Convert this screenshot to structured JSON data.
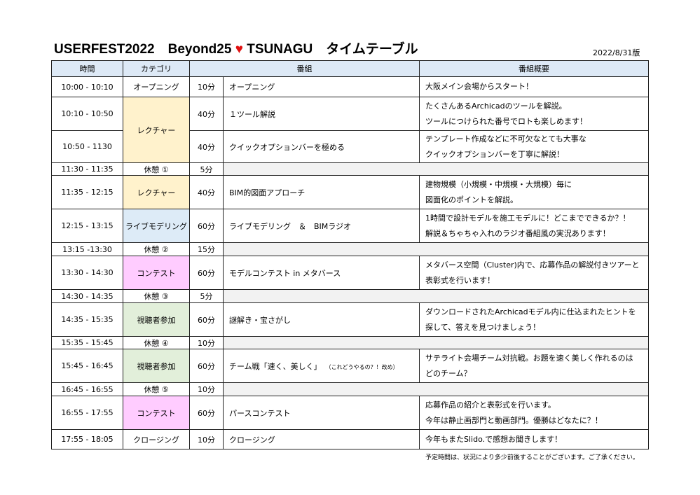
{
  "title": {
    "part1": "USERFEST2022　Beyond25 ",
    "heart": "♥",
    "part2": " TSUNAGU　タイムテーブル"
  },
  "version": "2022/8/31版",
  "headers": {
    "time": "時間",
    "category": "カテゴリ",
    "program": "番組",
    "summary": "番組概要"
  },
  "colors": {
    "header": "#dde9f6",
    "lecture": "#fff2cc",
    "live": "#ddebf7",
    "contest": "#ffccff",
    "viewer": "#e2efda",
    "break": "#f2f2f2",
    "heart": "#e01010"
  },
  "rows": [
    {
      "time": "10:00 - 10:10",
      "category": "オープニング",
      "duration": "10分",
      "program": "オープニング",
      "summary": "大阪メイン会場からスタート！"
    },
    {
      "time": "10:10 - 10:50",
      "category": "レクチャー",
      "cat_color": "lecture",
      "cat_rowspan": 2,
      "duration": "40分",
      "program": "１ツール解説",
      "summary": "たくさんあるArchicadのツールを解説。\nツールにつけられた番号でロトも楽しめます！"
    },
    {
      "time": "10:50 - 1130",
      "duration": "40分",
      "program": "クイックオプションバーを極める",
      "summary": "テンプレート作成などに不可欠なとても大事な\nクイックオプションバーを丁寧に解説！"
    },
    {
      "time": "11:30 - 11:35",
      "category": "休憩 ①",
      "duration": "5分",
      "break": true
    },
    {
      "time": "11:35 - 12:15",
      "category": "レクチャー",
      "cat_color": "lecture",
      "duration": "40分",
      "program": "BIM的図面アプローチ",
      "summary": "建物規模（小規模・中規模・大規模）毎に\n図面化のポイントを解説。"
    },
    {
      "time": "12:15 - 13:15",
      "category": "ライブモデリング",
      "cat_color": "live",
      "duration": "60分",
      "program": "ライブモデリング　＆　BIMラジオ",
      "summary": "1時間で設計モデルを施工モデルに！どこまでできるか？！\n解説＆ちゃちゃ入れのラジオ番組風の実況あります！"
    },
    {
      "time": "13:15 -13:30",
      "category": "休憩 ②",
      "duration": "15分",
      "break": true
    },
    {
      "time": "13:30 - 14:30",
      "category": "コンテスト",
      "cat_color": "contest",
      "duration": "60分",
      "program": "モデルコンテスト in メタバース",
      "summary": "メタバース空間（Cluster)内で、応募作品の解説付きツアーと\n表彰式を行います！"
    },
    {
      "time": "14:30 - 14:35",
      "category": "休憩 ③",
      "duration": "5分",
      "break": true
    },
    {
      "time": "14:35 - 15:35",
      "category": "視聴者参加",
      "cat_color": "viewer",
      "duration": "60分",
      "program": "謎解き・宝さがし",
      "summary": "ダウンロードされたArchicadモデル内に仕込まれたヒントを\n探して、答えを見つけましょう！"
    },
    {
      "time": "15:35 - 15:45",
      "category": "休憩 ④",
      "duration": "10分",
      "break": true
    },
    {
      "time": "15:45 - 16:45",
      "category": "視聴者参加",
      "cat_color": "viewer",
      "duration": "60分",
      "program": "チーム戦「速く、美しく」",
      "program_note": "（これどうやるの？！改め）",
      "summary": "サテライト会場チーム対抗戦。お題を速く美しく作れるのは\nどのチーム？"
    },
    {
      "time": "16:45 - 16:55",
      "category": "休憩 ⑤",
      "duration": "10分",
      "break": true
    },
    {
      "time": "16:55 - 17:55",
      "category": "コンテスト",
      "cat_color": "contest",
      "duration": "60分",
      "program": "パースコンテスト",
      "summary": "応募作品の紹介と表彰式を行います。\n今年は静止画部門と動画部門。優勝はどなたに？！"
    },
    {
      "time": "17:55 - 18:05",
      "category": "クロージング",
      "duration": "10分",
      "program": "クロージング",
      "summary": "今年もまたSlido.で感想お聞きします！"
    }
  ],
  "note": "予定時間は、状況により多少前後することがございます。ご了承ください。"
}
